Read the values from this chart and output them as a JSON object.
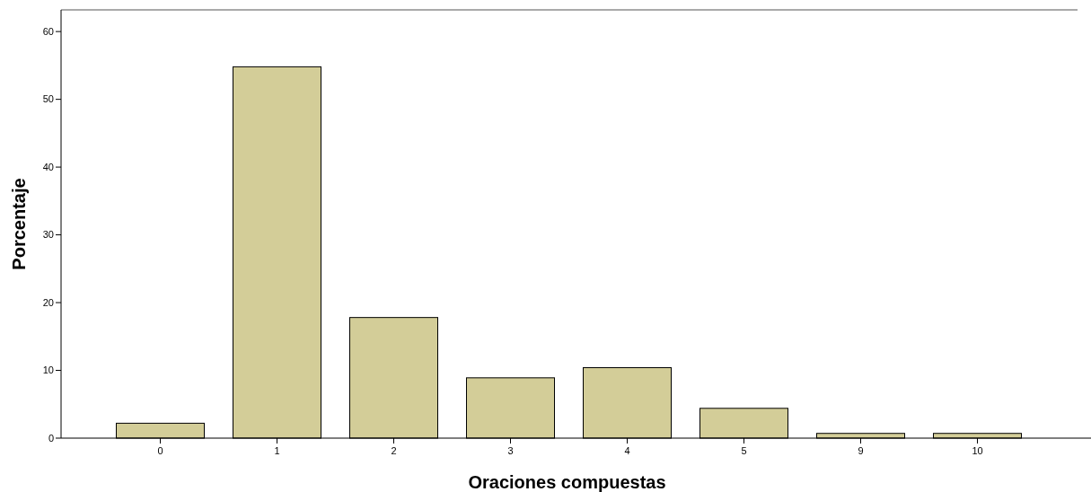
{
  "chart_data": {
    "type": "bar",
    "xlabel": "Oraciones compuestas",
    "ylabel": "Porcentaje",
    "categories": [
      "0",
      "1",
      "2",
      "3",
      "4",
      "5",
      "9",
      "10"
    ],
    "values": [
      2.2,
      54.8,
      17.8,
      8.9,
      10.4,
      4.4,
      0.7,
      0.7
    ],
    "color": "#d3cd98",
    "ylim": [
      0,
      63.2
    ],
    "yticks": [
      0,
      10,
      20,
      30,
      40,
      50,
      60
    ],
    "grid": false
  }
}
